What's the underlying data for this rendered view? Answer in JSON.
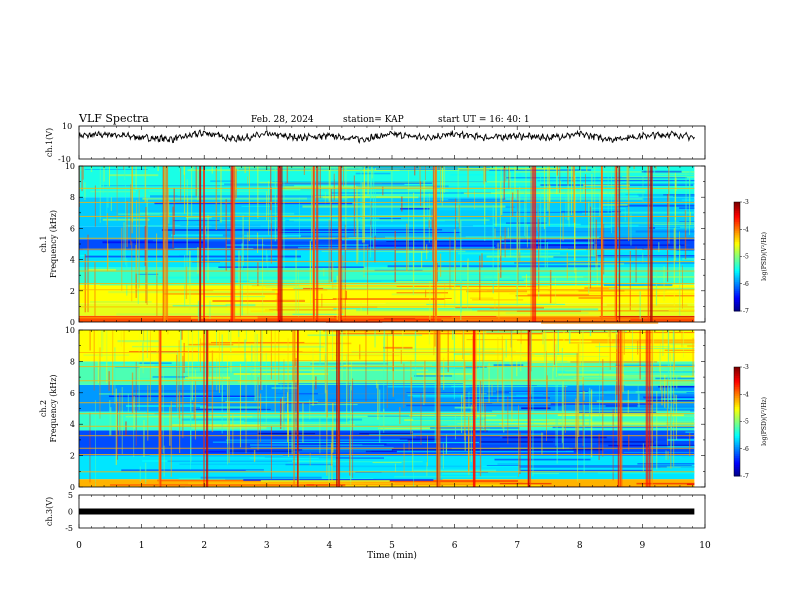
{
  "header": {
    "title": "VLF Spectra",
    "date": "Feb. 28, 2024",
    "station": "station= KAP",
    "start": "start  UT =   16: 40: 1"
  },
  "chart_data": [
    {
      "type": "line",
      "panel": "ch1-waveform",
      "ylabel": "ch.1(V)",
      "ylim": [
        -10,
        10
      ],
      "ytick_labels": [
        "10",
        "-10"
      ],
      "xlim": [
        0,
        10
      ],
      "data_end_min": 9.83,
      "series": [
        {
          "x_min": [
            0,
            0.5,
            1,
            1.5,
            2,
            2.5,
            3,
            3.5,
            4,
            4.5,
            5,
            5.5,
            6,
            6.5,
            7,
            7.5,
            8,
            8.5,
            9,
            9.5,
            9.83
          ],
          "y_v": [
            4,
            5,
            3,
            2,
            6,
            2,
            5,
            3,
            4,
            2,
            5,
            3,
            5,
            3,
            4,
            3,
            5,
            2,
            4,
            5,
            3
          ]
        }
      ]
    },
    {
      "type": "heatmap",
      "panel": "ch1-spectrogram",
      "ylabel": "ch.1\nFrequency (kHz)",
      "ylim": [
        0,
        10
      ],
      "ytick_labels": [
        "0",
        "2",
        "4",
        "6",
        "8",
        "10"
      ],
      "xlim": [
        0,
        10
      ],
      "data_end_min": 9.83,
      "colorbar": {
        "label": "log(PSD)(V²/Hz)",
        "range": [
          -7,
          -3
        ],
        "tick_labels": [
          "-3",
          "-4",
          "-5",
          "-6",
          "-7"
        ]
      },
      "bands_khz": [
        {
          "from": 0,
          "to": 0.4,
          "level": -3.8
        },
        {
          "from": 0.4,
          "to": 1.2,
          "level": -4.6
        },
        {
          "from": 1.2,
          "to": 2.4,
          "level": -4.5
        },
        {
          "from": 2.4,
          "to": 3.5,
          "level": -5.3
        },
        {
          "from": 3.5,
          "to": 4.6,
          "level": -5.6
        },
        {
          "from": 4.6,
          "to": 5.3,
          "level": -6.2
        },
        {
          "from": 5.3,
          "to": 6.1,
          "level": -5.8
        },
        {
          "from": 6.1,
          "to": 8.0,
          "level": -5.7
        },
        {
          "from": 8.0,
          "to": 10,
          "level": -5.4
        }
      ],
      "bursts_min": [
        1.35,
        1.95,
        2.45,
        3.2,
        3.75,
        4.15,
        5.7,
        7.25,
        8.35,
        8.6,
        9.1
      ]
    },
    {
      "type": "heatmap",
      "panel": "ch2-spectrogram",
      "ylabel": "ch.2\nFrequency (kHz)",
      "ylim": [
        0,
        10
      ],
      "ytick_labels": [
        "0",
        "2",
        "4",
        "6",
        "8",
        "10"
      ],
      "xlim": [
        0,
        10
      ],
      "data_end_min": 9.83,
      "colorbar": {
        "label": "log(PSD)(V²/Hz)",
        "range": [
          -7,
          -3
        ],
        "tick_labels": [
          "-3",
          "-4",
          "-5",
          "-6",
          "-7"
        ]
      },
      "bands_khz": [
        {
          "from": 0,
          "to": 0.5,
          "level": -4.2
        },
        {
          "from": 0.5,
          "to": 2.0,
          "level": -5.6
        },
        {
          "from": 2.0,
          "to": 3.6,
          "level": -6.2
        },
        {
          "from": 3.6,
          "to": 4.8,
          "level": -5.3
        },
        {
          "from": 4.8,
          "to": 6.5,
          "level": -5.9
        },
        {
          "from": 6.5,
          "to": 8.0,
          "level": -5.2
        },
        {
          "from": 8.0,
          "to": 10,
          "level": -4.5
        }
      ],
      "bursts_min": [
        1.3,
        2.0,
        3.45,
        4.15,
        5.75,
        6.3,
        7.2,
        8.65,
        9.1
      ]
    },
    {
      "type": "line",
      "panel": "ch3-waveform",
      "ylabel": "ch.3(V)",
      "ylim": [
        -5,
        5
      ],
      "ytick_labels": [
        "5",
        "0",
        "-5"
      ],
      "xlim": [
        0,
        10
      ],
      "xlabel": "Time  (min)",
      "xtick_labels": [
        "0",
        "1",
        "2",
        "3",
        "4",
        "5",
        "6",
        "7",
        "8",
        "9",
        "10"
      ],
      "data_end_min": 9.83,
      "series": [
        {
          "x_min": [
            0,
            9.83
          ],
          "y_v": [
            0,
            0
          ]
        }
      ]
    }
  ]
}
